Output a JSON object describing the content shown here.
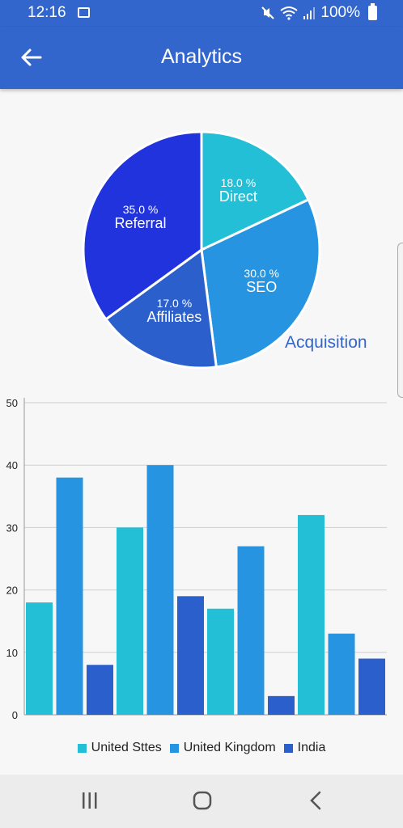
{
  "status": {
    "time": "12:16",
    "battery": "100%"
  },
  "appbar": {
    "title": "Analytics"
  },
  "colors": {
    "primary": "#3366cc",
    "c1": "#22bfd6",
    "c2": "#2694e0",
    "c3": "#2b5fcc",
    "c4": "#2133dd"
  },
  "pie": {
    "caption": "Acquisition",
    "slices": [
      {
        "name": "Direct",
        "pct_label": "18.0 %",
        "value": 18,
        "color": "#22bfd6"
      },
      {
        "name": "SEO",
        "pct_label": "30.0 %",
        "value": 30,
        "color": "#2694e0"
      },
      {
        "name": "Affiliates",
        "pct_label": "17.0 %",
        "value": 17,
        "color": "#2b5fcc"
      },
      {
        "name": "Referral",
        "pct_label": "35.0 %",
        "value": 35,
        "color": "#2133dd"
      }
    ]
  },
  "chart_data": [
    {
      "type": "pie",
      "title": "Acquisition",
      "categories": [
        "Direct",
        "SEO",
        "Affiliates",
        "Referral"
      ],
      "values": [
        18,
        30,
        17,
        35
      ]
    },
    {
      "type": "bar",
      "categories": [
        "",
        "",
        "",
        ""
      ],
      "series": [
        {
          "name": "United Sttes",
          "values": [
            18,
            30,
            17,
            32
          ],
          "color": "#22bfd6"
        },
        {
          "name": "United Kingdom",
          "values": [
            38,
            40,
            27,
            13
          ],
          "color": "#2694e0"
        },
        {
          "name": "India",
          "values": [
            8,
            19,
            3,
            9
          ],
          "color": "#2b5fcc"
        }
      ],
      "ylim": [
        0,
        50
      ],
      "yticks": [
        0,
        10,
        20,
        30,
        40,
        50
      ],
      "grid": true,
      "legend": "bottom"
    }
  ],
  "legend": [
    {
      "label": "United Sttes",
      "color": "#22bfd6"
    },
    {
      "label": "United Kingdom",
      "color": "#2694e0"
    },
    {
      "label": "India",
      "color": "#2b5fcc"
    }
  ]
}
